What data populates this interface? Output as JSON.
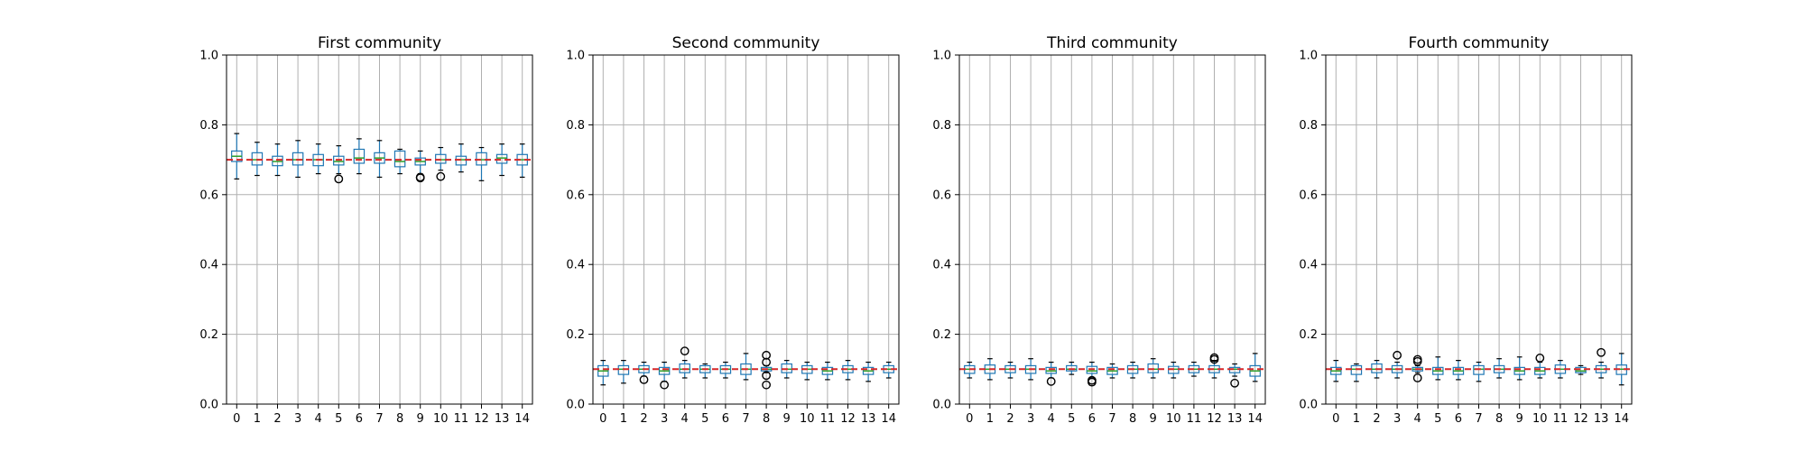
{
  "chart_data": [
    {
      "type": "box",
      "title": "First community",
      "categories": [
        "0",
        "1",
        "2",
        "3",
        "4",
        "5",
        "6",
        "7",
        "8",
        "9",
        "10",
        "11",
        "12",
        "13",
        "14"
      ],
      "ylim": [
        0,
        1.0
      ],
      "yticks": [
        "0.0",
        "0.2",
        "0.4",
        "0.6",
        "0.8",
        "1.0"
      ],
      "grid": true,
      "reference_line": {
        "y": 0.7,
        "color": "#d62728",
        "style": "dashed"
      },
      "boxes": [
        {
          "min": 0.645,
          "q1": 0.695,
          "median": 0.71,
          "q3": 0.725,
          "max": 0.775,
          "outliers": []
        },
        {
          "min": 0.655,
          "q1": 0.685,
          "median": 0.7,
          "q3": 0.72,
          "max": 0.75,
          "outliers": []
        },
        {
          "min": 0.655,
          "q1": 0.683,
          "median": 0.695,
          "q3": 0.71,
          "max": 0.745,
          "outliers": []
        },
        {
          "min": 0.65,
          "q1": 0.685,
          "median": 0.7,
          "q3": 0.72,
          "max": 0.755,
          "outliers": []
        },
        {
          "min": 0.66,
          "q1": 0.683,
          "median": 0.7,
          "q3": 0.715,
          "max": 0.745,
          "outliers": []
        },
        {
          "min": 0.66,
          "q1": 0.685,
          "median": 0.695,
          "q3": 0.71,
          "max": 0.74,
          "outliers": [
            0.645
          ]
        },
        {
          "min": 0.66,
          "q1": 0.69,
          "median": 0.705,
          "q3": 0.73,
          "max": 0.76,
          "outliers": []
        },
        {
          "min": 0.65,
          "q1": 0.69,
          "median": 0.705,
          "q3": 0.72,
          "max": 0.755,
          "outliers": []
        },
        {
          "min": 0.66,
          "q1": 0.68,
          "median": 0.695,
          "q3": 0.725,
          "max": 0.73,
          "outliers": []
        },
        {
          "min": 0.66,
          "q1": 0.685,
          "median": 0.695,
          "q3": 0.705,
          "max": 0.725,
          "outliers": [
            0.65,
            0.648
          ]
        },
        {
          "min": 0.67,
          "q1": 0.69,
          "median": 0.7,
          "q3": 0.715,
          "max": 0.735,
          "outliers": [
            0.652
          ]
        },
        {
          "min": 0.665,
          "q1": 0.685,
          "median": 0.7,
          "q3": 0.71,
          "max": 0.745,
          "outliers": []
        },
        {
          "min": 0.64,
          "q1": 0.685,
          "median": 0.7,
          "q3": 0.72,
          "max": 0.735,
          "outliers": []
        },
        {
          "min": 0.655,
          "q1": 0.69,
          "median": 0.705,
          "q3": 0.715,
          "max": 0.745,
          "outliers": []
        },
        {
          "min": 0.65,
          "q1": 0.685,
          "median": 0.7,
          "q3": 0.715,
          "max": 0.745,
          "outliers": []
        }
      ]
    },
    {
      "type": "box",
      "title": "Second community",
      "categories": [
        "0",
        "1",
        "2",
        "3",
        "4",
        "5",
        "6",
        "7",
        "8",
        "9",
        "10",
        "11",
        "12",
        "13",
        "14"
      ],
      "ylim": [
        0,
        1.0
      ],
      "yticks": [
        "0.0",
        "0.2",
        "0.4",
        "0.6",
        "0.8",
        "1.0"
      ],
      "grid": true,
      "reference_line": {
        "y": 0.1,
        "color": "#d62728",
        "style": "dashed"
      },
      "boxes": [
        {
          "min": 0.055,
          "q1": 0.08,
          "median": 0.095,
          "q3": 0.11,
          "max": 0.125,
          "outliers": []
        },
        {
          "min": 0.06,
          "q1": 0.085,
          "median": 0.1,
          "q3": 0.11,
          "max": 0.125,
          "outliers": []
        },
        {
          "min": 0.08,
          "q1": 0.09,
          "median": 0.1,
          "q3": 0.11,
          "max": 0.12,
          "outliers": [
            0.07
          ]
        },
        {
          "min": 0.065,
          "q1": 0.085,
          "median": 0.095,
          "q3": 0.105,
          "max": 0.12,
          "outliers": [
            0.055
          ]
        },
        {
          "min": 0.075,
          "q1": 0.09,
          "median": 0.1,
          "q3": 0.115,
          "max": 0.125,
          "outliers": [
            0.152
          ]
        },
        {
          "min": 0.075,
          "q1": 0.09,
          "median": 0.1,
          "q3": 0.11,
          "max": 0.115,
          "outliers": []
        },
        {
          "min": 0.075,
          "q1": 0.088,
          "median": 0.1,
          "q3": 0.11,
          "max": 0.12,
          "outliers": []
        },
        {
          "min": 0.07,
          "q1": 0.085,
          "median": 0.1,
          "q3": 0.115,
          "max": 0.145,
          "outliers": []
        },
        {
          "min": 0.09,
          "q1": 0.095,
          "median": 0.1,
          "q3": 0.105,
          "max": 0.11,
          "outliers": [
            0.14,
            0.12,
            0.082,
            0.055
          ]
        },
        {
          "min": 0.075,
          "q1": 0.09,
          "median": 0.1,
          "q3": 0.115,
          "max": 0.125,
          "outliers": []
        },
        {
          "min": 0.07,
          "q1": 0.088,
          "median": 0.1,
          "q3": 0.11,
          "max": 0.12,
          "outliers": []
        },
        {
          "min": 0.07,
          "q1": 0.085,
          "median": 0.095,
          "q3": 0.105,
          "max": 0.12,
          "outliers": []
        },
        {
          "min": 0.07,
          "q1": 0.09,
          "median": 0.1,
          "q3": 0.11,
          "max": 0.125,
          "outliers": []
        },
        {
          "min": 0.065,
          "q1": 0.085,
          "median": 0.095,
          "q3": 0.105,
          "max": 0.12,
          "outliers": []
        },
        {
          "min": 0.075,
          "q1": 0.09,
          "median": 0.1,
          "q3": 0.11,
          "max": 0.12,
          "outliers": []
        }
      ]
    },
    {
      "type": "box",
      "title": "Third community",
      "categories": [
        "0",
        "1",
        "2",
        "3",
        "4",
        "5",
        "6",
        "7",
        "8",
        "9",
        "10",
        "11",
        "12",
        "13",
        "14"
      ],
      "ylim": [
        0,
        1.0
      ],
      "yticks": [
        "0.0",
        "0.2",
        "0.4",
        "0.6",
        "0.8",
        "1.0"
      ],
      "grid": true,
      "reference_line": {
        "y": 0.1,
        "color": "#d62728",
        "style": "dashed"
      },
      "boxes": [
        {
          "min": 0.075,
          "q1": 0.088,
          "median": 0.1,
          "q3": 0.11,
          "max": 0.12,
          "outliers": []
        },
        {
          "min": 0.07,
          "q1": 0.088,
          "median": 0.1,
          "q3": 0.112,
          "max": 0.13,
          "outliers": []
        },
        {
          "min": 0.075,
          "q1": 0.09,
          "median": 0.1,
          "q3": 0.11,
          "max": 0.12,
          "outliers": []
        },
        {
          "min": 0.07,
          "q1": 0.088,
          "median": 0.1,
          "q3": 0.11,
          "max": 0.13,
          "outliers": []
        },
        {
          "min": 0.075,
          "q1": 0.088,
          "median": 0.095,
          "q3": 0.105,
          "max": 0.12,
          "outliers": [
            0.065
          ]
        },
        {
          "min": 0.085,
          "q1": 0.095,
          "median": 0.1,
          "q3": 0.11,
          "max": 0.12,
          "outliers": []
        },
        {
          "min": 0.075,
          "q1": 0.088,
          "median": 0.095,
          "q3": 0.108,
          "max": 0.12,
          "outliers": [
            0.068,
            0.063
          ]
        },
        {
          "min": 0.075,
          "q1": 0.085,
          "median": 0.095,
          "q3": 0.105,
          "max": 0.115,
          "outliers": []
        },
        {
          "min": 0.075,
          "q1": 0.088,
          "median": 0.1,
          "q3": 0.11,
          "max": 0.12,
          "outliers": []
        },
        {
          "min": 0.075,
          "q1": 0.09,
          "median": 0.1,
          "q3": 0.115,
          "max": 0.13,
          "outliers": []
        },
        {
          "min": 0.075,
          "q1": 0.088,
          "median": 0.1,
          "q3": 0.108,
          "max": 0.12,
          "outliers": []
        },
        {
          "min": 0.08,
          "q1": 0.09,
          "median": 0.1,
          "q3": 0.11,
          "max": 0.12,
          "outliers": []
        },
        {
          "min": 0.075,
          "q1": 0.09,
          "median": 0.1,
          "q3": 0.11,
          "max": 0.125,
          "outliers": [
            0.133,
            0.128
          ]
        },
        {
          "min": 0.08,
          "q1": 0.09,
          "median": 0.1,
          "q3": 0.105,
          "max": 0.115,
          "outliers": [
            0.06
          ]
        },
        {
          "min": 0.065,
          "q1": 0.08,
          "median": 0.095,
          "q3": 0.11,
          "max": 0.145,
          "outliers": []
        }
      ]
    },
    {
      "type": "box",
      "title": "Fourth community",
      "categories": [
        "0",
        "1",
        "2",
        "3",
        "4",
        "5",
        "6",
        "7",
        "8",
        "9",
        "10",
        "11",
        "12",
        "13",
        "14"
      ],
      "ylim": [
        0,
        1.0
      ],
      "yticks": [
        "0.0",
        "0.2",
        "0.4",
        "0.6",
        "0.8",
        "1.0"
      ],
      "grid": true,
      "reference_line": {
        "y": 0.1,
        "color": "#d62728",
        "style": "dashed"
      },
      "boxes": [
        {
          "min": 0.065,
          "q1": 0.085,
          "median": 0.095,
          "q3": 0.105,
          "max": 0.125,
          "outliers": []
        },
        {
          "min": 0.065,
          "q1": 0.085,
          "median": 0.1,
          "q3": 0.11,
          "max": 0.115,
          "outliers": []
        },
        {
          "min": 0.075,
          "q1": 0.09,
          "median": 0.1,
          "q3": 0.115,
          "max": 0.125,
          "outliers": []
        },
        {
          "min": 0.075,
          "q1": 0.09,
          "median": 0.1,
          "q3": 0.11,
          "max": 0.12,
          "outliers": [
            0.14
          ]
        },
        {
          "min": 0.09,
          "q1": 0.095,
          "median": 0.1,
          "q3": 0.105,
          "max": 0.11,
          "outliers": [
            0.128,
            0.122,
            0.075
          ]
        },
        {
          "min": 0.07,
          "q1": 0.085,
          "median": 0.095,
          "q3": 0.105,
          "max": 0.135,
          "outliers": []
        },
        {
          "min": 0.07,
          "q1": 0.085,
          "median": 0.095,
          "q3": 0.105,
          "max": 0.125,
          "outliers": []
        },
        {
          "min": 0.065,
          "q1": 0.085,
          "median": 0.1,
          "q3": 0.11,
          "max": 0.12,
          "outliers": []
        },
        {
          "min": 0.075,
          "q1": 0.09,
          "median": 0.1,
          "q3": 0.11,
          "max": 0.13,
          "outliers": []
        },
        {
          "min": 0.07,
          "q1": 0.085,
          "median": 0.095,
          "q3": 0.105,
          "max": 0.135,
          "outliers": []
        },
        {
          "min": 0.075,
          "q1": 0.085,
          "median": 0.095,
          "q3": 0.105,
          "max": 0.12,
          "outliers": [
            0.132
          ]
        },
        {
          "min": 0.075,
          "q1": 0.088,
          "median": 0.1,
          "q3": 0.112,
          "max": 0.125,
          "outliers": []
        },
        {
          "min": 0.085,
          "q1": 0.09,
          "median": 0.095,
          "q3": 0.105,
          "max": 0.11,
          "outliers": []
        },
        {
          "min": 0.075,
          "q1": 0.09,
          "median": 0.1,
          "q3": 0.11,
          "max": 0.12,
          "outliers": [
            0.148
          ]
        },
        {
          "min": 0.055,
          "q1": 0.085,
          "median": 0.1,
          "q3": 0.112,
          "max": 0.145,
          "outliers": []
        }
      ]
    }
  ],
  "colors": {
    "box": "#1f77b4",
    "median": "#2ca02c",
    "reference": "#d62728",
    "grid": "#b0b0b0"
  }
}
